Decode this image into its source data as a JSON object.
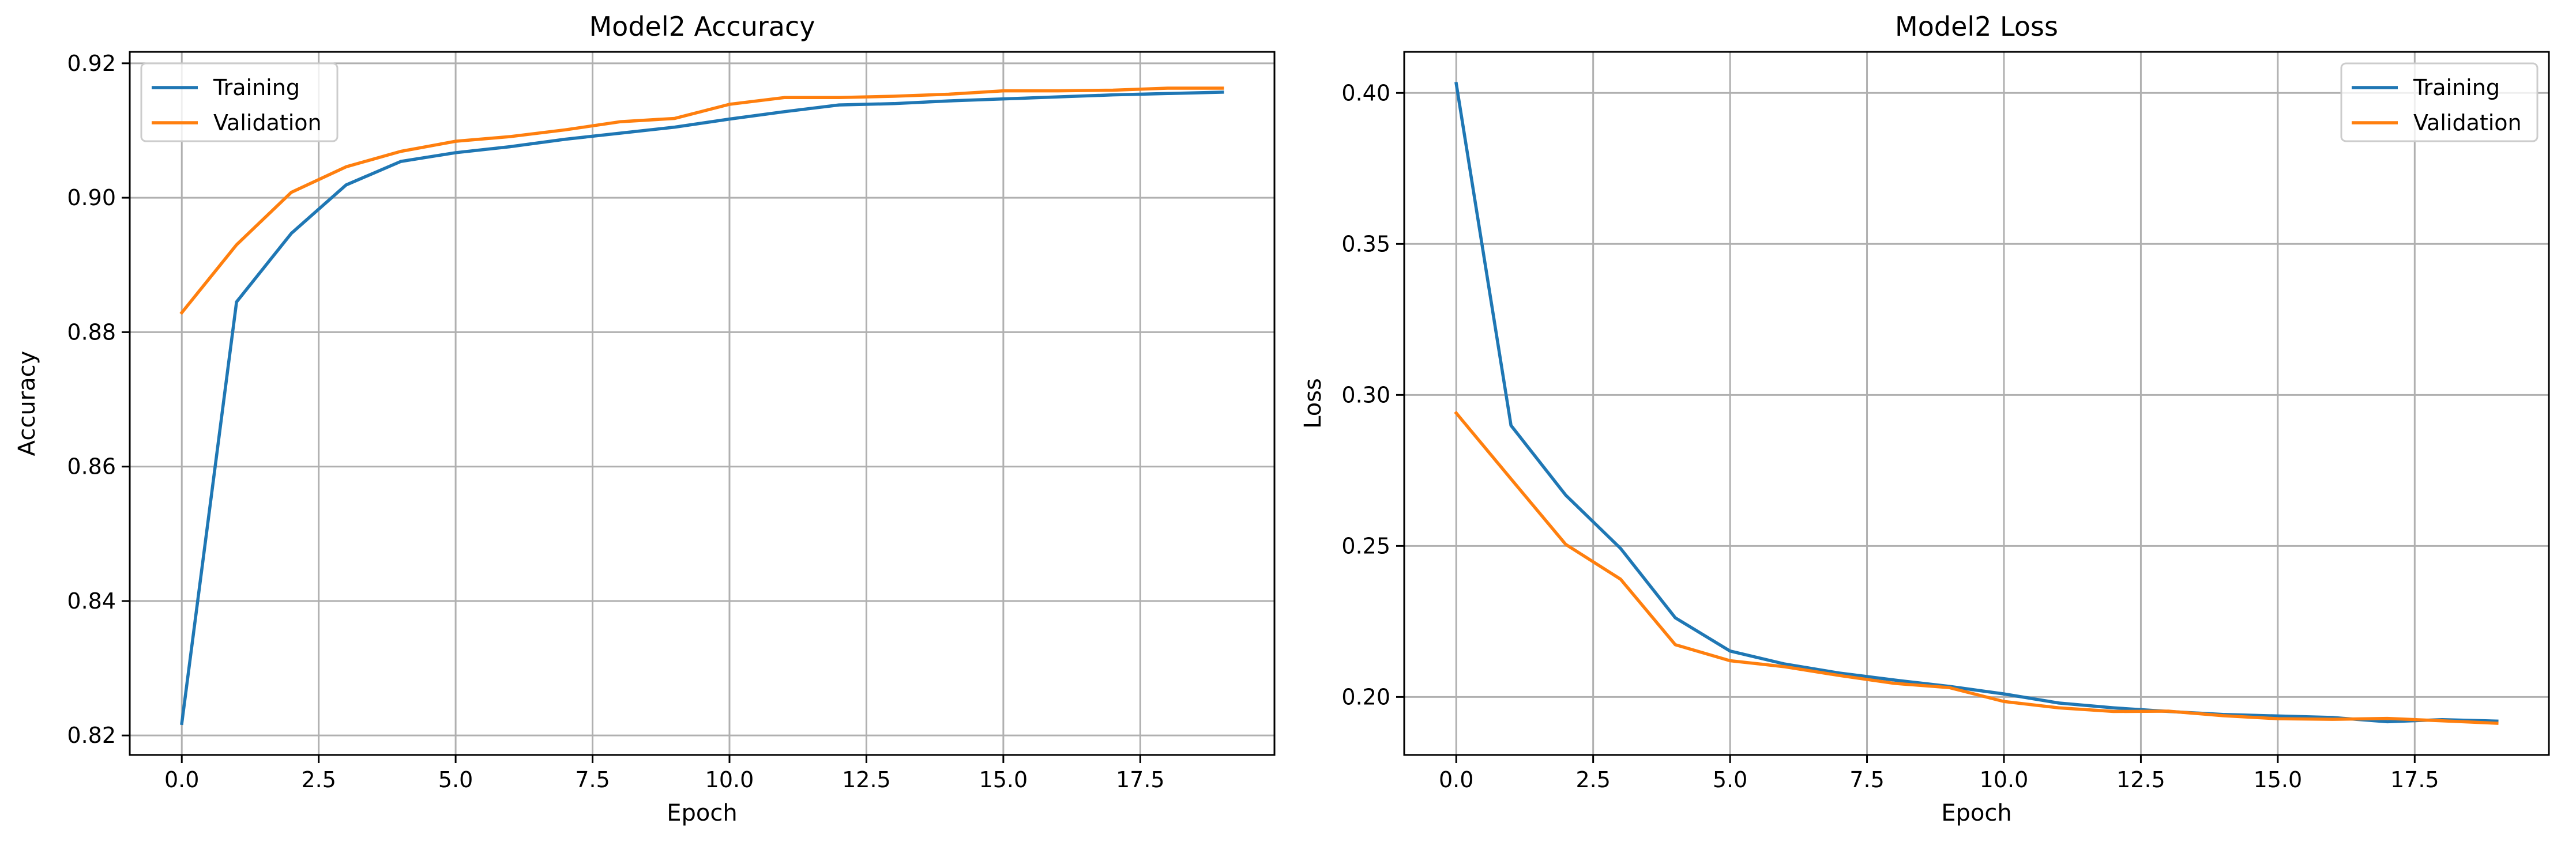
{
  "chart_data": [
    {
      "type": "line",
      "title": "Model2 Accuracy",
      "xlabel": "Epoch",
      "ylabel": "Accuracy",
      "xlim": [
        -0.95,
        19.95
      ],
      "ylim": [
        0.8171,
        0.9217
      ],
      "xticks": [
        0.0,
        2.5,
        5.0,
        7.5,
        10.0,
        12.5,
        15.0,
        17.5
      ],
      "xtick_labels": [
        "0.0",
        "2.5",
        "5.0",
        "7.5",
        "10.0",
        "12.5",
        "15.0",
        "17.5"
      ],
      "yticks": [
        0.82,
        0.84,
        0.86,
        0.88,
        0.9,
        0.92
      ],
      "ytick_labels": [
        "0.82",
        "0.84",
        "0.86",
        "0.88",
        "0.90",
        "0.92"
      ],
      "grid": true,
      "legend_position": "upper left",
      "x": [
        0,
        1,
        2,
        3,
        4,
        5,
        6,
        7,
        8,
        9,
        10,
        11,
        12,
        13,
        14,
        15,
        16,
        17,
        18,
        19
      ],
      "series": [
        {
          "name": "Training",
          "color": "#1f77b4",
          "values": [
            0.8218,
            0.8845,
            0.8947,
            0.9019,
            0.9054,
            0.9067,
            0.9076,
            0.9087,
            0.9096,
            0.9105,
            0.9117,
            0.9128,
            0.9138,
            0.914,
            0.9144,
            0.9147,
            0.915,
            0.9153,
            0.9155,
            0.9157
          ]
        },
        {
          "name": "Validation",
          "color": "#ff7f0e",
          "values": [
            0.8829,
            0.893,
            0.9008,
            0.9046,
            0.9069,
            0.9084,
            0.9091,
            0.9101,
            0.9113,
            0.9118,
            0.9139,
            0.9149,
            0.9149,
            0.9151,
            0.9154,
            0.9159,
            0.9159,
            0.916,
            0.9163,
            0.9163
          ]
        }
      ]
    },
    {
      "type": "line",
      "title": "Model2 Loss",
      "xlabel": "Epoch",
      "ylabel": "Loss",
      "xlim": [
        -0.95,
        19.95
      ],
      "ylim": [
        0.1808,
        0.4136
      ],
      "xticks": [
        0.0,
        2.5,
        5.0,
        7.5,
        10.0,
        12.5,
        15.0,
        17.5
      ],
      "xtick_labels": [
        "0.0",
        "2.5",
        "5.0",
        "7.5",
        "10.0",
        "12.5",
        "15.0",
        "17.5"
      ],
      "yticks": [
        0.2,
        0.25,
        0.3,
        0.35,
        0.4
      ],
      "ytick_labels": [
        "0.20",
        "0.25",
        "0.30",
        "0.35",
        "0.40"
      ],
      "grid": true,
      "legend_position": "upper right",
      "x": [
        0,
        1,
        2,
        3,
        4,
        5,
        6,
        7,
        8,
        9,
        10,
        11,
        12,
        13,
        14,
        15,
        16,
        17,
        18,
        19
      ],
      "series": [
        {
          "name": "Training",
          "color": "#1f77b4",
          "values": [
            0.4031,
            0.2899,
            0.2668,
            0.2492,
            0.2262,
            0.2152,
            0.2109,
            0.2079,
            0.2056,
            0.2035,
            0.201,
            0.198,
            0.1964,
            0.1952,
            0.1942,
            0.1937,
            0.1932,
            0.1918,
            0.1925,
            0.192
          ]
        },
        {
          "name": "Validation",
          "color": "#ff7f0e",
          "values": [
            0.294,
            0.2722,
            0.2505,
            0.239,
            0.2173,
            0.212,
            0.21,
            0.2071,
            0.2045,
            0.2031,
            0.1985,
            0.1964,
            0.1952,
            0.1953,
            0.1938,
            0.1928,
            0.1926,
            0.1929,
            0.1921,
            0.1913
          ]
        }
      ]
    }
  ]
}
